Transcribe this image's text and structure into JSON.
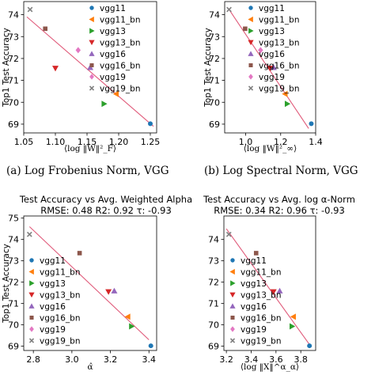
{
  "captions": [
    "(a) Log Frobenius Norm, VGG",
    "(b) Log Spectral Norm, VGG"
  ],
  "legend_entries": [
    {
      "name": "vgg11",
      "color": "#1f77b4",
      "marker": "circle"
    },
    {
      "name": "vgg11_bn",
      "color": "#ff7f0e",
      "marker": "triangle-left"
    },
    {
      "name": "vgg13",
      "color": "#2ca02c",
      "marker": "triangle-right"
    },
    {
      "name": "vgg13_bn",
      "color": "#d62728",
      "marker": "triangle-down"
    },
    {
      "name": "vgg16",
      "color": "#9467bd",
      "marker": "triangle-up"
    },
    {
      "name": "vgg16_bn",
      "color": "#8c564b",
      "marker": "square"
    },
    {
      "name": "vgg19",
      "color": "#e377c2",
      "marker": "diamond"
    },
    {
      "name": "vgg19_bn",
      "color": "#7f7f7f",
      "marker": "x"
    }
  ],
  "fit_line_color": "#e05a7a",
  "chart_data": [
    {
      "type": "scatter",
      "title": "",
      "xlabel": "⟨log ‖W‖²_F⟩",
      "ylabel": "Top1 Test Accuracy",
      "xlim": [
        1.05,
        1.26
      ],
      "ylim": [
        68.6,
        74.6
      ],
      "xticks": [
        "1.05",
        "1.10",
        "1.15",
        "1.20",
        "1.25"
      ],
      "xtick_values": [
        1.05,
        1.1,
        1.15,
        1.2,
        1.25
      ],
      "yticks": [
        "69",
        "70",
        "71",
        "72",
        "73",
        "74"
      ],
      "ytick_values": [
        69,
        70,
        71,
        72,
        73,
        74
      ],
      "legend_position": "upper right",
      "fit_line": [
        [
          1.055,
          73.9
        ],
        [
          1.255,
          68.9
        ]
      ],
      "points": [
        {
          "series": "vgg11",
          "x": 1.25,
          "y": 69.02
        },
        {
          "series": "vgg11_bn",
          "x": 1.196,
          "y": 70.38
        },
        {
          "series": "vgg13",
          "x": 1.177,
          "y": 69.93
        },
        {
          "series": "vgg13_bn",
          "x": 1.1,
          "y": 71.55
        },
        {
          "series": "vgg16",
          "x": 1.155,
          "y": 71.59
        },
        {
          "series": "vgg16_bn",
          "x": 1.084,
          "y": 73.36
        },
        {
          "series": "vgg19",
          "x": 1.136,
          "y": 72.38
        },
        {
          "series": "vgg19_bn",
          "x": 1.06,
          "y": 74.24
        }
      ]
    },
    {
      "type": "scatter",
      "title": "",
      "xlabel": "⟨log ‖W‖²_∞⟩",
      "ylabel": "Top1 Test Accuracy",
      "xlim": [
        0.88,
        1.4
      ],
      "ylim": [
        68.6,
        74.6
      ],
      "xticks": [
        "1.0",
        "1.2",
        "1.4"
      ],
      "xtick_values": [
        1.0,
        1.2,
        1.4
      ],
      "yticks": [
        "69",
        "70",
        "71",
        "72",
        "73",
        "74"
      ],
      "ytick_values": [
        69,
        70,
        71,
        72,
        73,
        74
      ],
      "legend_position": "upper right",
      "fit_line": [
        [
          0.9,
          74.3
        ],
        [
          1.36,
          68.8
        ]
      ],
      "points": [
        {
          "series": "vgg11",
          "x": 1.375,
          "y": 69.02
        },
        {
          "series": "vgg11_bn",
          "x": 1.225,
          "y": 70.38
        },
        {
          "series": "vgg13",
          "x": 1.238,
          "y": 69.93
        },
        {
          "series": "vgg13_bn",
          "x": 1.14,
          "y": 71.55
        },
        {
          "series": "vgg16",
          "x": 1.16,
          "y": 71.59
        },
        {
          "series": "vgg16_bn",
          "x": 0.997,
          "y": 73.36
        },
        {
          "series": "vgg19",
          "x": 1.085,
          "y": 72.38
        },
        {
          "series": "vgg19_bn",
          "x": 0.905,
          "y": 74.24
        }
      ]
    },
    {
      "type": "scatter",
      "title": "Test Accuracy vs Avg. Weighted Alpha",
      "subtitle": "RMSE: 0.48 R2: 0.92 τ: -0.93",
      "xlabel": "α̂",
      "ylabel": "Top1 Test Accuracy",
      "xlim": [
        2.75,
        3.44
      ],
      "ylim": [
        68.8,
        75.1
      ],
      "xticks": [
        "2.8",
        "3.0",
        "3.2",
        "3.4"
      ],
      "xtick_values": [
        2.8,
        3.0,
        3.2,
        3.4
      ],
      "yticks": [
        "69",
        "70",
        "71",
        "72",
        "73",
        "74",
        "75"
      ],
      "ytick_values": [
        69,
        70,
        71,
        72,
        73,
        74,
        75
      ],
      "legend_position": "lower left",
      "fit_line": [
        [
          2.78,
          74.6
        ],
        [
          3.4,
          69.3
        ]
      ],
      "points": [
        {
          "series": "vgg11",
          "x": 3.41,
          "y": 69.02
        },
        {
          "series": "vgg11_bn",
          "x": 3.29,
          "y": 70.38
        },
        {
          "series": "vgg13",
          "x": 3.31,
          "y": 69.93
        },
        {
          "series": "vgg13_bn",
          "x": 3.19,
          "y": 71.55
        },
        {
          "series": "vgg16",
          "x": 3.22,
          "y": 71.59
        },
        {
          "series": "vgg16_bn",
          "x": 3.04,
          "y": 73.36
        },
        {
          "series": "vgg19_bn",
          "x": 2.78,
          "y": 74.24
        }
      ]
    },
    {
      "type": "scatter",
      "title": "Test Accuracy vs Avg. log α-Norm",
      "subtitle": "RMSE: 0.34 R2: 0.96 τ: -0.93",
      "xlabel": "⟨log ‖X‖^α_α⟩",
      "ylabel": "",
      "xlim": [
        3.18,
        3.92
      ],
      "ylim": [
        68.8,
        75.1
      ],
      "xticks": [
        "3.2",
        "3.4",
        "3.6",
        "3.8"
      ],
      "xtick_values": [
        3.2,
        3.4,
        3.6,
        3.8
      ],
      "yticks": [
        "69",
        "70",
        "71",
        "72",
        "73",
        "74"
      ],
      "ytick_values": [
        69,
        70,
        71,
        72,
        73,
        74
      ],
      "legend_position": "lower left",
      "fit_line": [
        [
          3.2,
          74.5
        ],
        [
          3.88,
          69.0
        ]
      ],
      "points": [
        {
          "series": "vgg11",
          "x": 3.87,
          "y": 69.02
        },
        {
          "series": "vgg11_bn",
          "x": 3.74,
          "y": 70.38
        },
        {
          "series": "vgg13",
          "x": 3.73,
          "y": 69.93
        },
        {
          "series": "vgg13_bn",
          "x": 3.58,
          "y": 71.55
        },
        {
          "series": "vgg16",
          "x": 3.63,
          "y": 71.59
        },
        {
          "series": "vgg16_bn",
          "x": 3.44,
          "y": 73.36
        },
        {
          "series": "vgg19_bn",
          "x": 3.22,
          "y": 74.24
        }
      ]
    }
  ]
}
